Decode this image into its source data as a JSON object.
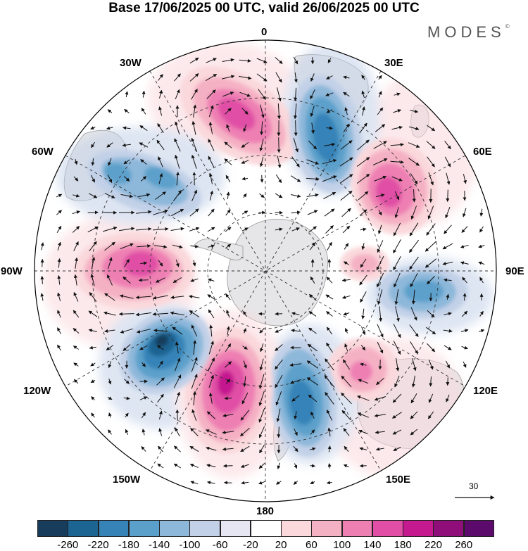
{
  "title": "Base 17/06/2025 00 UTC, valid 26/06/2025 00 UTC",
  "brand": "MODES",
  "brand_mark": "©",
  "longitude_labels": {
    "lon_0": "0",
    "lon_30e": "30E",
    "lon_60e": "60E",
    "lon_90e": "90E",
    "lon_120e": "120E",
    "lon_150e": "150E",
    "lon_180": "180",
    "lon_150w": "150W",
    "lon_120w": "120W",
    "lon_90w": "90W",
    "lon_60w": "60W",
    "lon_30w": "30W"
  },
  "vector_reference": "30",
  "colorbar": {
    "labels": [
      "-260",
      "-220",
      "-180",
      "-140",
      "-100",
      "-60",
      "-20",
      "20",
      "60",
      "100",
      "140",
      "180",
      "220",
      "260"
    ],
    "colors": [
      "#183c5c",
      "#1c6492",
      "#3683b8",
      "#5ba0cb",
      "#8db8da",
      "#c3d1e8",
      "#e6e6f2",
      "#ffffff",
      "#fad8dc",
      "#f5b1c4",
      "#ee7fb3",
      "#e04fa5",
      "#c4198f",
      "#900e7a",
      "#5c0a6b"
    ]
  },
  "anomalies": [
    {
      "sign": "positive",
      "level": 180,
      "color": "#e04fa5"
    },
    {
      "sign": "negative",
      "level": -180,
      "color": "#3683b8"
    },
    {
      "sign": "positive",
      "level": 180,
      "color": "#e04fa5"
    },
    {
      "sign": "positive",
      "level": 60,
      "color": "#fad8dc"
    },
    {
      "sign": "negative",
      "level": -140,
      "color": "#5ba0cb"
    },
    {
      "sign": "positive",
      "level": 100,
      "color": "#f5b1c4"
    },
    {
      "sign": "negative",
      "level": -180,
      "color": "#3683b8"
    },
    {
      "sign": "positive",
      "level": 220,
      "color": "#c4198f"
    },
    {
      "sign": "negative",
      "level": -260,
      "color": "#183c5c"
    },
    {
      "sign": "positive",
      "level": 180,
      "color": "#e04fa5"
    },
    {
      "sign": "negative",
      "level": -100,
      "color": "#8db8da"
    }
  ]
}
